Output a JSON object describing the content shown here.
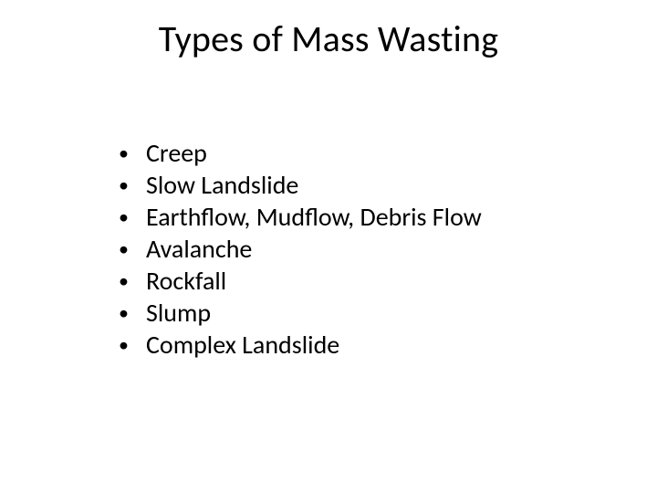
{
  "slide": {
    "title": "Types of Mass Wasting",
    "title_fontsize": 40,
    "body_fontsize": 28,
    "text_color": "#000000",
    "background_color": "#ffffff",
    "bullets": [
      "Creep",
      "Slow Landslide",
      "Earthflow, Mudflow, Debris Flow",
      "Avalanche",
      "Rockfall",
      "Slump",
      "Complex Landslide"
    ]
  }
}
